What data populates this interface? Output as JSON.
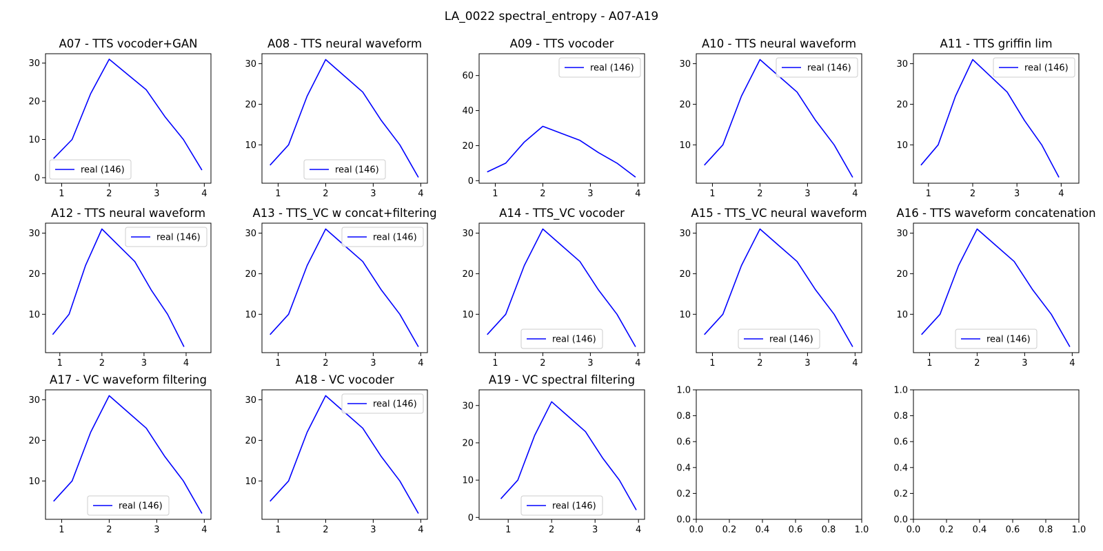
{
  "figure": {
    "suptitle": "LA_0022 spectral_entropy - A07-A19"
  },
  "chart_data": [
    {
      "type": "line",
      "title": "A07 - TTS vocoder+GAN",
      "x": [
        0.83,
        1.22,
        1.61,
        2.0,
        2.39,
        2.78,
        3.17,
        3.56,
        3.95
      ],
      "series": [
        {
          "name": "real (146)",
          "color": "#0000ff",
          "values": [
            5,
            10,
            22,
            31,
            27,
            23,
            16,
            10,
            2
          ]
        }
      ],
      "xlim": [
        0.66,
        4.14
      ],
      "ylim": [
        -1.45,
        32.45
      ],
      "xticks": [
        "1",
        "2",
        "3",
        "4"
      ],
      "yticks": [
        "0",
        "10",
        "20",
        "30"
      ],
      "legend": "lower left"
    },
    {
      "type": "line",
      "title": "A08 - TTS neural waveform",
      "x": [
        0.83,
        1.22,
        1.61,
        2.0,
        2.39,
        2.78,
        3.17,
        3.56,
        3.95
      ],
      "series": [
        {
          "name": "real (146)",
          "color": "#0000ff",
          "values": [
            5,
            10,
            22,
            31,
            27,
            23,
            16,
            10,
            2
          ]
        }
      ],
      "xlim": [
        0.66,
        4.14
      ],
      "ylim": [
        0.55,
        32.45
      ],
      "xticks": [
        "1",
        "2",
        "3",
        "4"
      ],
      "yticks": [
        "10",
        "20",
        "30"
      ],
      "legend": "lower center"
    },
    {
      "type": "line",
      "title": "A09 - TTS vocoder",
      "x": [
        0.83,
        1.22,
        1.61,
        2.0,
        2.39,
        2.78,
        3.17,
        3.56,
        3.95
      ],
      "series": [
        {
          "name": "real (146)",
          "color": "#0000ff",
          "values": [
            5,
            10,
            22,
            31,
            27,
            23,
            16,
            10,
            2
          ]
        }
      ],
      "xlim": [
        0.66,
        4.14
      ],
      "ylim": [
        -1.45,
        72.45
      ],
      "xticks": [
        "1",
        "2",
        "3",
        "4"
      ],
      "yticks": [
        "0",
        "20",
        "40",
        "60"
      ],
      "legend": "upper right"
    },
    {
      "type": "line",
      "title": "A10 - TTS neural waveform",
      "x": [
        0.83,
        1.22,
        1.61,
        2.0,
        2.39,
        2.78,
        3.17,
        3.56,
        3.95
      ],
      "series": [
        {
          "name": "real (146)",
          "color": "#0000ff",
          "values": [
            5,
            10,
            22,
            31,
            27,
            23,
            16,
            10,
            2
          ]
        }
      ],
      "xlim": [
        0.66,
        4.14
      ],
      "ylim": [
        0.55,
        32.45
      ],
      "xticks": [
        "1",
        "2",
        "3",
        "4"
      ],
      "yticks": [
        "10",
        "20",
        "30"
      ],
      "legend": "upper right"
    },
    {
      "type": "line",
      "title": "A11 - TTS griffin lim",
      "x": [
        0.83,
        1.22,
        1.61,
        2.0,
        2.39,
        2.78,
        3.17,
        3.56,
        3.95
      ],
      "series": [
        {
          "name": "real (146)",
          "color": "#0000ff",
          "values": [
            5,
            10,
            22,
            31,
            27,
            23,
            16,
            10,
            2
          ]
        }
      ],
      "xlim": [
        0.66,
        4.4
      ],
      "ylim": [
        0.55,
        32.45
      ],
      "xticks": [
        "1",
        "2",
        "3",
        "4"
      ],
      "yticks": [
        "10",
        "20",
        "30"
      ],
      "legend": "upper right"
    },
    {
      "type": "line",
      "title": "A12 - TTS neural waveform",
      "x": [
        0.83,
        1.22,
        1.61,
        2.0,
        2.39,
        2.78,
        3.17,
        3.56,
        3.95
      ],
      "series": [
        {
          "name": "real (146)",
          "color": "#0000ff",
          "values": [
            5,
            10,
            22,
            31,
            27,
            23,
            16,
            10,
            2
          ]
        }
      ],
      "xlim": [
        0.66,
        4.59
      ],
      "ylim": [
        0.55,
        32.45
      ],
      "xticks": [
        "1",
        "2",
        "3",
        "4"
      ],
      "yticks": [
        "10",
        "20",
        "30"
      ],
      "legend": "upper right"
    },
    {
      "type": "line",
      "title": "A13 - TTS_VC w concat+filtering",
      "x": [
        0.83,
        1.22,
        1.61,
        2.0,
        2.39,
        2.78,
        3.17,
        3.56,
        3.95
      ],
      "series": [
        {
          "name": "real (146)",
          "color": "#0000ff",
          "values": [
            5,
            10,
            22,
            31,
            27,
            23,
            16,
            10,
            2
          ]
        }
      ],
      "xlim": [
        0.66,
        4.14
      ],
      "ylim": [
        0.55,
        32.45
      ],
      "xticks": [
        "1",
        "2",
        "3",
        "4"
      ],
      "yticks": [
        "10",
        "20",
        "30"
      ],
      "legend": "upper right"
    },
    {
      "type": "line",
      "title": "A14 - TTS_VC vocoder",
      "x": [
        0.83,
        1.22,
        1.61,
        2.0,
        2.39,
        2.78,
        3.17,
        3.56,
        3.95
      ],
      "series": [
        {
          "name": "real (146)",
          "color": "#0000ff",
          "values": [
            5,
            10,
            22,
            31,
            27,
            23,
            16,
            10,
            2
          ]
        }
      ],
      "xlim": [
        0.66,
        4.14
      ],
      "ylim": [
        0.55,
        32.45
      ],
      "xticks": [
        "1",
        "2",
        "3",
        "4"
      ],
      "yticks": [
        "10",
        "20",
        "30"
      ],
      "legend": "lower center"
    },
    {
      "type": "line",
      "title": "A15 - TTS_VC neural waveform",
      "x": [
        0.83,
        1.22,
        1.61,
        2.0,
        2.39,
        2.78,
        3.17,
        3.56,
        3.95
      ],
      "series": [
        {
          "name": "real (146)",
          "color": "#0000ff",
          "values": [
            5,
            10,
            22,
            31,
            27,
            23,
            16,
            10,
            2
          ]
        }
      ],
      "xlim": [
        0.66,
        4.14
      ],
      "ylim": [
        0.55,
        32.45
      ],
      "xticks": [
        "1",
        "2",
        "3",
        "4"
      ],
      "yticks": [
        "10",
        "20",
        "30"
      ],
      "legend": "lower center"
    },
    {
      "type": "line",
      "title": "A16 - TTS waveform concatenation",
      "x": [
        0.83,
        1.22,
        1.61,
        2.0,
        2.39,
        2.78,
        3.17,
        3.56,
        3.95
      ],
      "series": [
        {
          "name": "real (146)",
          "color": "#0000ff",
          "values": [
            5,
            10,
            22,
            31,
            27,
            23,
            16,
            10,
            2
          ]
        }
      ],
      "xlim": [
        0.66,
        4.14
      ],
      "ylim": [
        0.55,
        32.45
      ],
      "xticks": [
        "1",
        "2",
        "3",
        "4"
      ],
      "yticks": [
        "10",
        "20",
        "30"
      ],
      "legend": "lower center"
    },
    {
      "type": "line",
      "title": "A17 - VC waveform filtering",
      "x": [
        0.83,
        1.22,
        1.61,
        2.0,
        2.39,
        2.78,
        3.17,
        3.56,
        3.95
      ],
      "series": [
        {
          "name": "real (146)",
          "color": "#0000ff",
          "values": [
            5,
            10,
            22,
            31,
            27,
            23,
            16,
            10,
            2
          ]
        }
      ],
      "xlim": [
        0.66,
        4.14
      ],
      "ylim": [
        0.55,
        32.45
      ],
      "xticks": [
        "1",
        "2",
        "3",
        "4"
      ],
      "yticks": [
        "10",
        "20",
        "30"
      ],
      "legend": "lower center"
    },
    {
      "type": "line",
      "title": "A18 - VC vocoder",
      "x": [
        0.83,
        1.22,
        1.61,
        2.0,
        2.39,
        2.78,
        3.17,
        3.56,
        3.95
      ],
      "series": [
        {
          "name": "real (146)",
          "color": "#0000ff",
          "values": [
            5,
            10,
            22,
            31,
            27,
            23,
            16,
            10,
            2
          ]
        }
      ],
      "xlim": [
        0.66,
        4.14
      ],
      "ylim": [
        0.55,
        32.45
      ],
      "xticks": [
        "1",
        "2",
        "3",
        "4"
      ],
      "yticks": [
        "10",
        "20",
        "30"
      ],
      "legend": "upper right"
    },
    {
      "type": "line",
      "title": "A19 - VC spectral filtering",
      "x": [
        0.83,
        1.22,
        1.61,
        2.0,
        2.39,
        2.78,
        3.17,
        3.56,
        3.95
      ],
      "series": [
        {
          "name": "real (146)",
          "color": "#0000ff",
          "values": [
            5,
            10,
            22,
            31,
            27,
            23,
            16,
            10,
            2
          ]
        }
      ],
      "xlim": [
        0.33,
        4.14
      ],
      "ylim": [
        -0.5,
        34.2
      ],
      "xticks": [
        "1",
        "2",
        "3",
        "4"
      ],
      "yticks": [
        "0",
        "10",
        "20",
        "30"
      ],
      "legend": "lower center"
    },
    {
      "type": "line",
      "title": "",
      "x": [],
      "series": [],
      "xlim": [
        0,
        1
      ],
      "ylim": [
        0,
        1
      ],
      "xticks": [
        "0.0",
        "0.2",
        "0.4",
        "0.6",
        "0.8",
        "1.0"
      ],
      "yticks": [
        "0.0",
        "0.2",
        "0.4",
        "0.6",
        "0.8",
        "1.0"
      ],
      "legend": "none"
    },
    {
      "type": "line",
      "title": "",
      "x": [],
      "series": [],
      "xlim": [
        0,
        1
      ],
      "ylim": [
        0,
        1
      ],
      "xticks": [
        "0.0",
        "0.2",
        "0.4",
        "0.6",
        "0.8",
        "1.0"
      ],
      "yticks": [
        "0.0",
        "0.2",
        "0.4",
        "0.6",
        "0.8",
        "1.0"
      ],
      "legend": "none"
    }
  ]
}
